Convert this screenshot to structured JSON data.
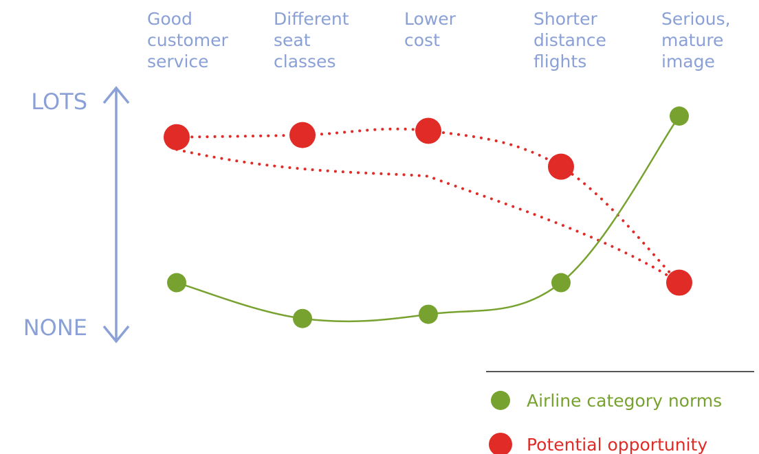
{
  "chart_data": {
    "type": "line",
    "categories": [
      "Good customer service",
      "Different seat classes",
      "Lower cost",
      "Shorter distance flights",
      "Serious, mature image"
    ],
    "category_lines": [
      [
        "Good",
        "customer",
        "service"
      ],
      [
        "Different",
        "seat",
        "classes"
      ],
      [
        "Lower",
        "cost"
      ],
      [
        "Shorter",
        "distance",
        "flights"
      ],
      [
        "Serious,",
        "mature",
        "image"
      ]
    ],
    "y_axis": {
      "top_label": "LOTS",
      "bottom_label": "NONE",
      "range": [
        0,
        10
      ]
    },
    "series": [
      {
        "name": "Airline category norms",
        "color": "#77a22f",
        "line_style": "solid",
        "values": [
          2.1,
          0.4,
          0.6,
          2.1,
          10.0
        ]
      },
      {
        "name": "Potential opportunity",
        "color": "#e02b27",
        "line_style": "dotted",
        "values": [
          9.0,
          9.1,
          9.3,
          7.6,
          2.1
        ],
        "extra_connection": {
          "from_index": 0,
          "to_index": 4
        }
      }
    ],
    "legend": {
      "position": "bottom-right",
      "entries": [
        "Airline category norms",
        "Potential opportunity"
      ]
    },
    "grid": false
  }
}
